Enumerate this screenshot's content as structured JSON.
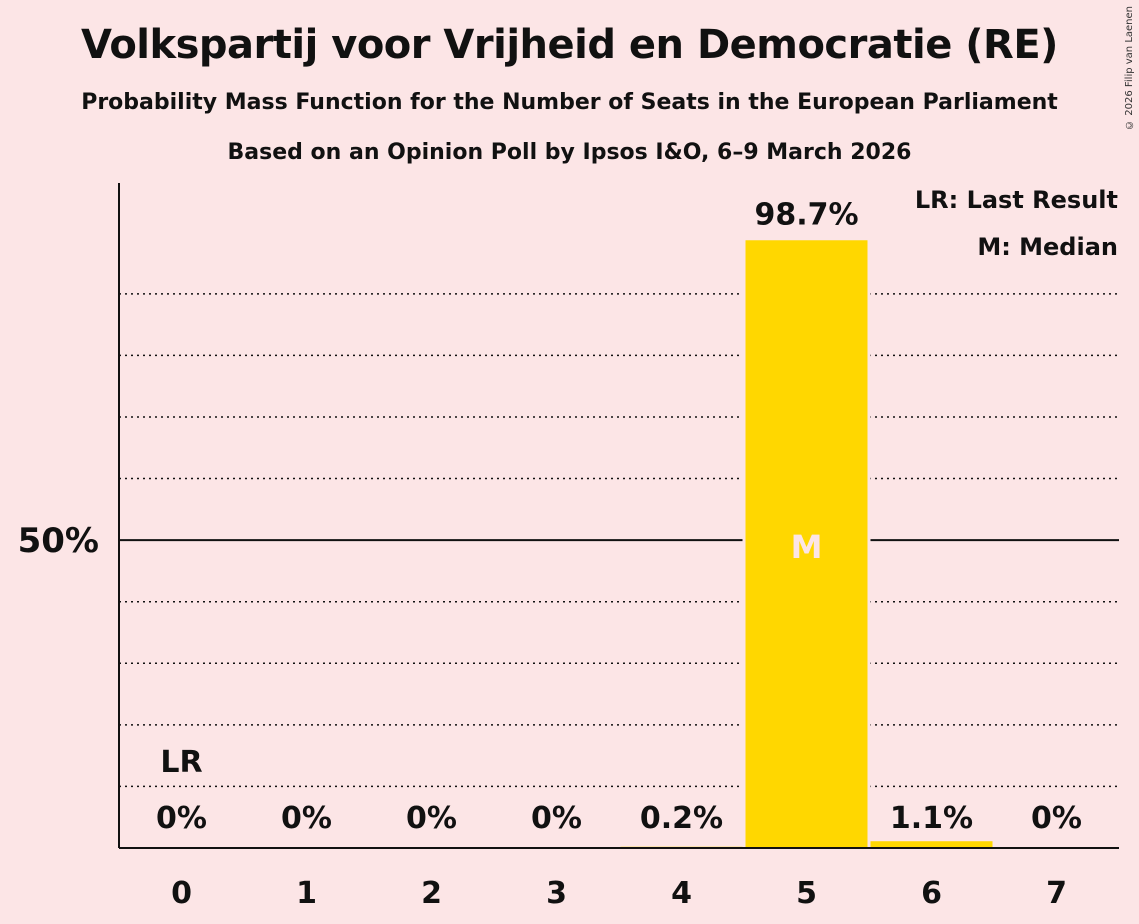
{
  "title": "Volkspartij voor Vrijheid en Democratie (RE)",
  "subtitle": "Probability Mass Function for the Number of Seats in the European Parliament",
  "subtitle2": "Based on an Opinion Poll by Ipsos I&O, 6–9 March 2026",
  "copyright": "© 2026 Filip van Laenen",
  "legend": {
    "last_result": "LR: Last Result",
    "median": "M: Median"
  },
  "colors": {
    "background": "#FCE5E6",
    "bar": "#FFD700",
    "median_label": "#FCE5E6",
    "text": "#111111"
  },
  "chart_data": {
    "type": "bar",
    "categories": [
      "0",
      "1",
      "2",
      "3",
      "4",
      "5",
      "6",
      "7"
    ],
    "values": [
      0,
      0,
      0,
      0,
      0.2,
      98.7,
      1.1,
      0
    ],
    "value_labels": [
      "0%",
      "0%",
      "0%",
      "0%",
      "0.2%",
      "98.7%",
      "1.1%",
      "0%"
    ],
    "ylim": [
      0,
      108
    ],
    "ytick_label": "50%",
    "ytick_value": 50,
    "dotted_gridlines": [
      10,
      20,
      30,
      40,
      60,
      70,
      80,
      90
    ],
    "last_result_index": 0,
    "last_result_marker": "LR",
    "median_index": 5,
    "median_marker": "M",
    "xlabel": "",
    "ylabel": ""
  }
}
